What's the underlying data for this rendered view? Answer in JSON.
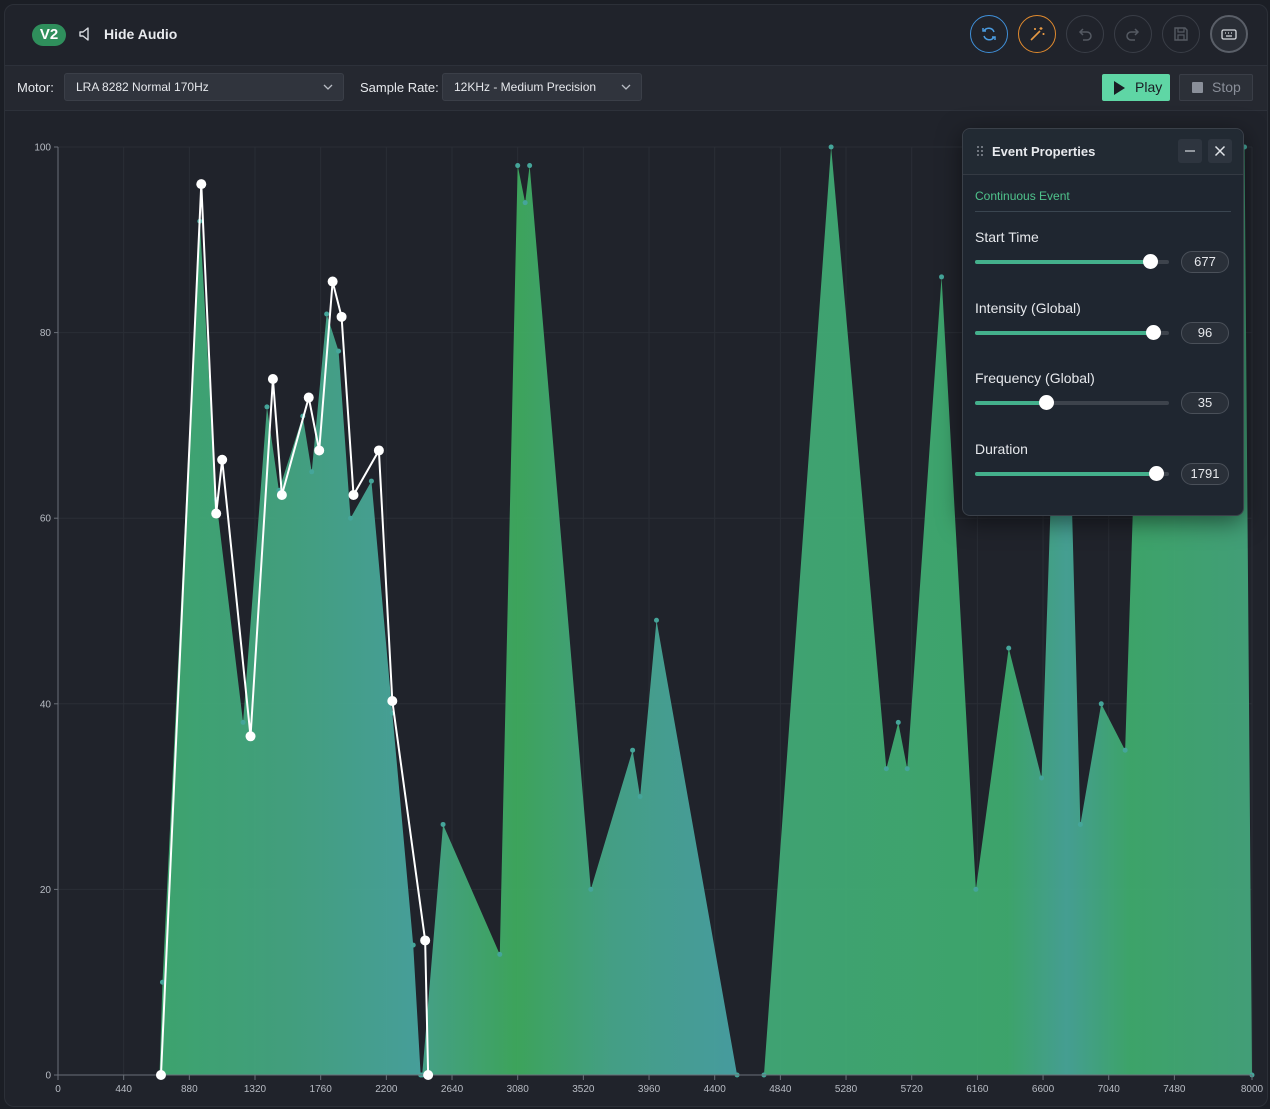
{
  "header": {
    "version_badge": "V2",
    "hide_audio_label": "Hide Audio",
    "toolbar_icons": [
      "refresh-icon",
      "magic-wand-icon",
      "undo-icon",
      "redo-icon",
      "save-icon",
      "keyboard-icon"
    ]
  },
  "controls": {
    "motor_label": "Motor:",
    "motor_value": "LRA 8282 Normal 170Hz",
    "sample_rate_label": "Sample Rate:",
    "sample_rate_value": "12KHz - Medium Precision",
    "play_label": "Play",
    "stop_label": "Stop"
  },
  "colors": {
    "accent": "#5fd6a5",
    "refresh_ring": "#3f8fd8",
    "magic_ring": "#e08a2e",
    "fill_green": "#3fae73",
    "fill_teal": "#4aa9a3"
  },
  "event_panel": {
    "title": "Event Properties",
    "event_type": "Continuous Event",
    "properties": [
      {
        "label": "Start Time",
        "value": "677",
        "fraction": 0.9
      },
      {
        "label": "Intensity (Global)",
        "value": "96",
        "fraction": 0.915
      },
      {
        "label": "Frequency (Global)",
        "value": "35",
        "fraction": 0.365
      },
      {
        "label": "Duration",
        "value": "1791",
        "fraction": 0.935
      }
    ]
  },
  "chart_data": {
    "type": "area",
    "title": "",
    "xlabel": "",
    "ylabel": "",
    "xlim": [
      0,
      8000
    ],
    "ylim": [
      0,
      100
    ],
    "grid": true,
    "x_ticks": [
      0,
      440,
      880,
      1320,
      1760,
      2200,
      2640,
      3080,
      3520,
      3960,
      4400,
      4840,
      5280,
      5720,
      6160,
      6600,
      7040,
      7480,
      8000
    ],
    "y_ticks": [
      0,
      20,
      40,
      60,
      80,
      100
    ],
    "series": [
      {
        "role": "audio-envelope",
        "x": [
          680,
          700,
          950,
          1060,
          1240,
          1400,
          1480,
          1640,
          1700,
          1800,
          1880,
          1960,
          2100,
          2240,
          2380,
          2430
        ],
        "y": [
          0,
          10,
          92,
          62,
          38,
          72,
          63,
          71,
          65,
          82,
          78,
          60,
          64,
          39,
          14,
          0
        ]
      },
      {
        "role": "audio-envelope",
        "x": [
          2440,
          2580,
          2960,
          3080,
          3130,
          3160,
          3570,
          3850,
          3900,
          4010,
          4550
        ],
        "y": [
          0,
          27,
          13,
          98,
          94,
          98,
          20,
          35,
          30,
          49,
          0
        ]
      },
      {
        "role": "audio-envelope",
        "x": [
          4730,
          5180,
          5550,
          5630,
          5690,
          5920,
          6150,
          6370,
          6590,
          6730,
          6850,
          6990,
          7150,
          7280,
          7400,
          7950,
          8000
        ],
        "y": [
          0,
          100,
          33,
          38,
          33,
          86,
          20,
          46,
          32,
          100,
          27,
          40,
          35,
          100,
          100,
          100,
          0
        ]
      },
      {
        "role": "haptic-event",
        "x": [
          690,
          960,
          1060,
          1100,
          1290,
          1440,
          1500,
          1680,
          1750,
          1840,
          1900,
          1980,
          2150,
          2240,
          2460,
          2480
        ],
        "y": [
          0,
          96,
          60.5,
          66.3,
          36.5,
          75,
          62.5,
          73,
          67.3,
          85.5,
          81.7,
          62.5,
          67.3,
          40.3,
          14.5,
          0
        ]
      }
    ]
  }
}
